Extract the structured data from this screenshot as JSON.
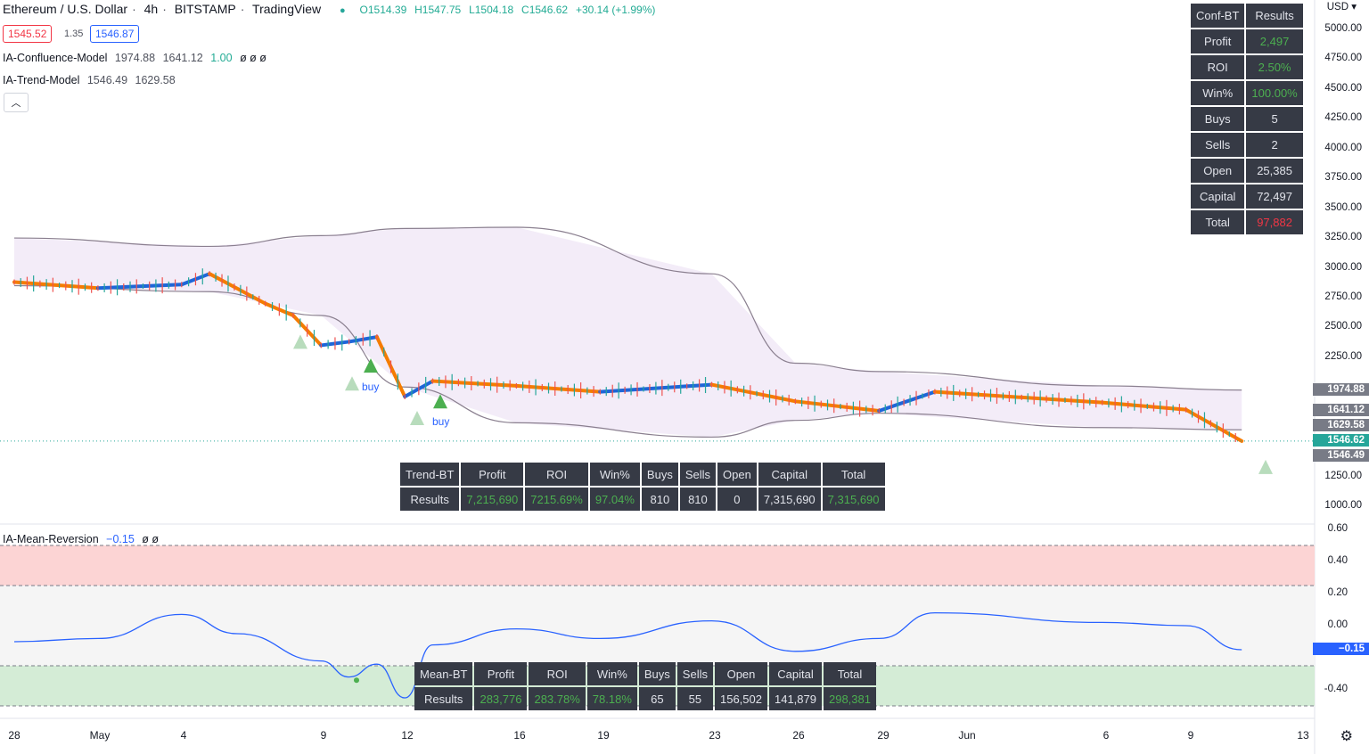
{
  "header": {
    "symbol": "Ethereum / U.S. Dollar",
    "timeframe": "4h",
    "exchange": "BITSTAMP",
    "source": "TradingView",
    "open": "O1514.39",
    "high": "H1547.75",
    "low": "L1504.18",
    "close": "C1546.62",
    "change": "+30.14 (+1.99%)",
    "bid": "1545.52",
    "spread": "1.35",
    "ask": "1546.87"
  },
  "indicators": {
    "confluence": {
      "name": "IA-Confluence-Model",
      "v1": "1974.88",
      "v2": "1641.12",
      "v3": "1.00",
      "v4": "ø ø ø"
    },
    "trend": {
      "name": "IA-Trend-Model",
      "v1": "1546.49",
      "v2": "1629.58"
    },
    "meanrev": {
      "name": "IA-Mean-Reversion",
      "v1": "−0.15",
      "v2": "ø ø"
    }
  },
  "conf_bt": {
    "header": [
      "Conf-BT",
      "Results"
    ],
    "rows": [
      {
        "label": "Profit",
        "value": "2,497"
      },
      {
        "label": "ROI",
        "value": "2.50%"
      },
      {
        "label": "Win%",
        "value": "100.00%"
      },
      {
        "label": "Buys",
        "value": "5"
      },
      {
        "label": "Sells",
        "value": "2"
      },
      {
        "label": "Open",
        "value": "25,385"
      },
      {
        "label": "Capital",
        "value": "72,497"
      },
      {
        "label": "Total",
        "value": "97,882"
      }
    ]
  },
  "trend_bt": {
    "header": [
      "Trend-BT",
      "Profit",
      "ROI",
      "Win%",
      "Buys",
      "Sells",
      "Open",
      "Capital",
      "Total"
    ],
    "row": [
      "Results",
      "7,215,690",
      "7215.69%",
      "97.04%",
      "810",
      "810",
      "0",
      "7,315,690",
      "7,315,690"
    ]
  },
  "mean_bt": {
    "header": [
      "Mean-BT",
      "Profit",
      "ROI",
      "Win%",
      "Buys",
      "Sells",
      "Open",
      "Capital",
      "Total"
    ],
    "row": [
      "Results",
      "283,776",
      "283.78%",
      "78.18%",
      "65",
      "55",
      "156,502",
      "141,879",
      "298,381"
    ]
  },
  "price_axis": {
    "currency": "USD",
    "ticks": [
      "5000.00",
      "4750.00",
      "4500.00",
      "4250.00",
      "4000.00",
      "3750.00",
      "3500.00",
      "3250.00",
      "3000.00",
      "2750.00",
      "2500.00",
      "2250.00",
      "1250.00",
      "1000.00"
    ]
  },
  "price_tags": [
    {
      "value": "1974.88",
      "color": "#787b86"
    },
    {
      "value": "1641.12",
      "color": "#787b86"
    },
    {
      "value": "1629.58",
      "color": "#787b86"
    },
    {
      "value": "1546.62",
      "color": "#26a69a"
    },
    {
      "value": "1546.49",
      "color": "#787b86"
    }
  ],
  "osc_axis": {
    "ticks": [
      "0.60",
      "0.40",
      "0.20",
      "0.00",
      "-0.40"
    ],
    "current": "−0.15"
  },
  "time_axis": [
    "28",
    "May",
    "4",
    "9",
    "12",
    "16",
    "19",
    "23",
    "26",
    "29",
    "Jun",
    "6",
    "9",
    "13"
  ],
  "signals": {
    "buy_label": "buy"
  },
  "chart_data": {
    "type": "line",
    "title": "Ethereum / U.S. Dollar · 4h · BITSTAMP",
    "ylabel": "USD",
    "price_series": [
      {
        "name": "close",
        "x": [
          "Apr 28",
          "May 1",
          "May 4",
          "May 5",
          "May 7",
          "May 8",
          "May 9",
          "May 10",
          "May 11",
          "May 12",
          "May 13",
          "May 16",
          "May 19",
          "May 23",
          "May 26",
          "May 29",
          "May 31",
          "Jun 6",
          "Jun 9",
          "Jun 11"
        ],
        "values": [
          2880,
          2830,
          2860,
          2950,
          2700,
          2600,
          2350,
          2380,
          2420,
          1920,
          2050,
          2010,
          1960,
          2020,
          1880,
          1800,
          1960,
          1870,
          1810,
          1546.62
        ]
      },
      {
        "name": "",
        "x": [
          "Apr 28",
          "May 5",
          "May 9",
          "May 12",
          "May 16",
          "May 23",
          "May 26",
          "May 29",
          "Jun 6",
          "Jun 11"
        ],
        "values": [
          3250,
          3180,
          3270,
          3330,
          3340,
          2950,
          2200,
          2130,
          2010,
          1974.88
        ]
      },
      {
        "name": "",
        "x": [
          "Apr 28",
          "May 5",
          "May 9",
          "May 12",
          "May 16",
          "May 23",
          "May 26",
          "May 29",
          "Jun 6",
          "Jun 11"
        ],
        "values": [
          2850,
          2800,
          2600,
          2000,
          1700,
          1580,
          1720,
          1780,
          1660,
          1641.12
        ]
      }
    ],
    "osc_series": {
      "name": "IA-Mean-Reversion",
      "x": [
        "Apr 28",
        "May 1",
        "May 4",
        "May 6",
        "May 9",
        "May 10",
        "May 11",
        "May 12",
        "May 13",
        "May 16",
        "May 19",
        "May 23",
        "May 26",
        "May 29",
        "May 31",
        "Jun 6",
        "Jun 9",
        "Jun 11"
      ],
      "values": [
        -0.1,
        -0.08,
        0.07,
        -0.05,
        -0.22,
        -0.32,
        -0.24,
        -0.45,
        -0.12,
        -0.02,
        -0.08,
        0.03,
        -0.16,
        -0.08,
        0.08,
        0.02,
        0.0,
        -0.15
      ]
    },
    "osc_bands": {
      "upper": [
        0.25,
        0.5
      ],
      "lower": [
        -0.5,
        -0.25
      ]
    },
    "ylim_price": [
      1000,
      5000
    ],
    "ylim_osc": [
      -0.5,
      0.6
    ]
  }
}
